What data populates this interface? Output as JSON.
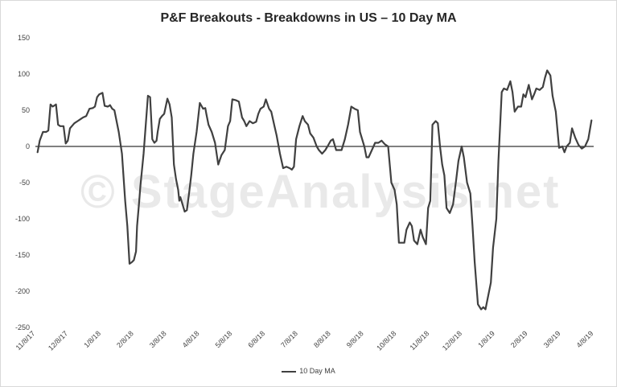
{
  "chart_data": {
    "type": "line",
    "title": "P&F Breakouts - Breakdowns in US – 10 Day MA",
    "watermark": "© StageAnalysis.net",
    "ylim": [
      -250,
      150
    ],
    "y_ticks": [
      150,
      100,
      50,
      0,
      -50,
      -100,
      -150,
      -200,
      -250
    ],
    "x_tick_labels": [
      "11/8/17",
      "12/8/17",
      "1/8/18",
      "2/8/18",
      "3/8/18",
      "4/8/18",
      "5/8/18",
      "6/8/18",
      "7/8/18",
      "8/8/18",
      "9/8/18",
      "10/8/18",
      "11/8/18",
      "12/8/18",
      "1/8/19",
      "2/8/19",
      "3/8/19",
      "4/8/19"
    ],
    "x_range": [
      "2017-11-08",
      "2019-04-08"
    ],
    "legend_position": "bottom",
    "series": [
      {
        "name": "10 Day MA",
        "color": "#404040",
        "x": [
          "2017-11-10",
          "2017-11-12",
          "2017-11-15",
          "2017-11-18",
          "2017-11-20",
          "2017-11-22",
          "2017-11-24",
          "2017-11-27",
          "2017-11-29",
          "2017-12-01",
          "2017-12-04",
          "2017-12-06",
          "2017-12-08",
          "2017-12-10",
          "2017-12-14",
          "2017-12-17",
          "2017-12-20",
          "2017-12-22",
          "2017-12-25",
          "2017-12-28",
          "2017-12-31",
          "2018-01-02",
          "2018-01-04",
          "2018-01-06",
          "2018-01-09",
          "2018-01-11",
          "2018-01-14",
          "2018-01-16",
          "2018-01-18",
          "2018-01-20",
          "2018-01-24",
          "2018-01-27",
          "2018-01-30",
          "2018-02-01",
          "2018-02-03",
          "2018-02-05",
          "2018-02-07",
          "2018-02-09",
          "2018-02-10",
          "2018-02-12",
          "2018-02-13",
          "2018-02-16",
          "2018-02-18",
          "2018-02-20",
          "2018-02-22",
          "2018-02-24",
          "2018-02-26",
          "2018-02-28",
          "2018-03-01",
          "2018-03-03",
          "2018-03-05",
          "2018-03-07",
          "2018-03-10",
          "2018-03-12",
          "2018-03-14",
          "2018-03-16",
          "2018-03-18",
          "2018-03-20",
          "2018-03-21",
          "2018-03-22",
          "2018-03-24",
          "2018-03-26",
          "2018-03-28",
          "2018-03-30",
          "2018-04-01",
          "2018-04-03",
          "2018-04-06",
          "2018-04-09",
          "2018-04-12",
          "2018-04-14",
          "2018-04-15",
          "2018-04-17",
          "2018-04-20",
          "2018-04-23",
          "2018-04-26",
          "2018-04-29",
          "2018-05-02",
          "2018-05-05",
          "2018-05-07",
          "2018-05-09",
          "2018-05-12",
          "2018-05-15",
          "2018-05-18",
          "2018-05-20",
          "2018-05-22",
          "2018-05-25",
          "2018-05-28",
          "2018-05-31",
          "2018-06-02",
          "2018-06-04",
          "2018-06-07",
          "2018-06-09",
          "2018-06-12",
          "2018-06-14",
          "2018-06-17",
          "2018-06-19",
          "2018-06-22",
          "2018-06-25",
          "2018-06-28",
          "2018-07-01",
          "2018-07-03",
          "2018-07-05",
          "2018-07-07",
          "2018-07-10",
          "2018-07-13",
          "2018-07-15",
          "2018-07-18",
          "2018-07-20",
          "2018-07-23",
          "2018-07-26",
          "2018-07-28",
          "2018-07-31",
          "2018-08-03",
          "2018-08-05",
          "2018-08-08",
          "2018-08-10",
          "2018-08-13",
          "2018-08-15",
          "2018-08-18",
          "2018-08-21",
          "2018-08-24",
          "2018-08-27",
          "2018-08-30",
          "2018-09-02",
          "2018-09-04",
          "2018-09-06",
          "2018-09-08",
          "2018-09-10",
          "2018-09-12",
          "2018-09-15",
          "2018-09-18",
          "2018-09-21",
          "2018-09-24",
          "2018-09-27",
          "2018-09-30",
          "2018-10-03",
          "2018-10-06",
          "2018-10-08",
          "2018-10-10",
          "2018-10-13",
          "2018-10-15",
          "2018-10-17",
          "2018-10-20",
          "2018-10-22",
          "2018-10-24",
          "2018-10-27",
          "2018-10-30",
          "2018-11-01",
          "2018-11-04",
          "2018-11-06",
          "2018-11-08",
          "2018-11-10",
          "2018-11-13",
          "2018-11-15",
          "2018-11-17",
          "2018-11-19",
          "2018-11-21",
          "2018-11-23",
          "2018-11-26",
          "2018-11-29",
          "2018-12-02",
          "2018-12-04",
          "2018-12-07",
          "2018-12-09",
          "2018-12-12",
          "2018-12-15",
          "2018-12-17",
          "2018-12-19",
          "2018-12-22",
          "2018-12-25",
          "2018-12-27",
          "2018-12-29",
          "2018-12-31",
          "2019-01-03",
          "2019-01-05",
          "2019-01-08",
          "2019-01-10",
          "2019-01-13",
          "2019-01-15",
          "2019-01-18",
          "2019-01-21",
          "2019-01-23",
          "2019-01-25",
          "2019-01-28",
          "2019-01-31",
          "2019-02-02",
          "2019-02-04",
          "2019-02-07",
          "2019-02-10",
          "2019-02-12",
          "2019-02-14",
          "2019-02-17",
          "2019-02-20",
          "2019-02-22",
          "2019-02-24",
          "2019-02-27",
          "2019-03-01",
          "2019-03-04",
          "2019-03-07",
          "2019-03-10",
          "2019-03-12",
          "2019-03-14",
          "2019-03-17",
          "2019-03-19",
          "2019-03-22",
          "2019-03-25",
          "2019-03-28",
          "2019-03-31",
          "2019-04-03",
          "2019-04-06"
        ],
        "values": [
          -8,
          8,
          20,
          20,
          22,
          58,
          55,
          58,
          30,
          28,
          28,
          4,
          8,
          25,
          32,
          35,
          38,
          40,
          42,
          52,
          53,
          55,
          68,
          72,
          74,
          56,
          55,
          57,
          52,
          50,
          20,
          -10,
          -75,
          -110,
          -162,
          -160,
          -157,
          -145,
          -110,
          -75,
          -55,
          -10,
          30,
          70,
          68,
          10,
          5,
          8,
          20,
          38,
          42,
          45,
          66,
          58,
          40,
          -25,
          -45,
          -60,
          -75,
          -70,
          -80,
          -90,
          -88,
          -65,
          -40,
          -10,
          20,
          60,
          52,
          53,
          45,
          30,
          20,
          5,
          -25,
          -12,
          -5,
          28,
          35,
          65,
          64,
          62,
          40,
          35,
          28,
          35,
          32,
          34,
          45,
          52,
          55,
          65,
          52,
          48,
          28,
          15,
          -10,
          -30,
          -28,
          -30,
          -32,
          -28,
          10,
          28,
          42,
          35,
          30,
          18,
          12,
          0,
          -5,
          -10,
          -5,
          0,
          8,
          10,
          -5,
          -5,
          -5,
          10,
          30,
          55,
          52,
          50,
          20,
          10,
          0,
          -15,
          -15,
          -5,
          5,
          5,
          8,
          3,
          0,
          -50,
          -60,
          -80,
          -133,
          -133,
          -133,
          -115,
          -105,
          -110,
          -130,
          -135,
          -115,
          -125,
          -135,
          -85,
          -75,
          30,
          35,
          32,
          0,
          -25,
          -40,
          -85,
          -92,
          -80,
          -45,
          -20,
          0,
          -15,
          -50,
          -65,
          -110,
          -160,
          -218,
          -225,
          -222,
          -225,
          -210,
          -188,
          -140,
          -100,
          -20,
          75,
          80,
          78,
          90,
          75,
          48,
          55,
          55,
          72,
          68,
          85,
          65,
          72,
          80,
          78,
          82,
          95,
          105,
          98,
          70,
          48,
          -2,
          0,
          -8,
          0,
          5,
          25,
          12,
          2,
          -3,
          0,
          10,
          36
        ]
      }
    ]
  }
}
